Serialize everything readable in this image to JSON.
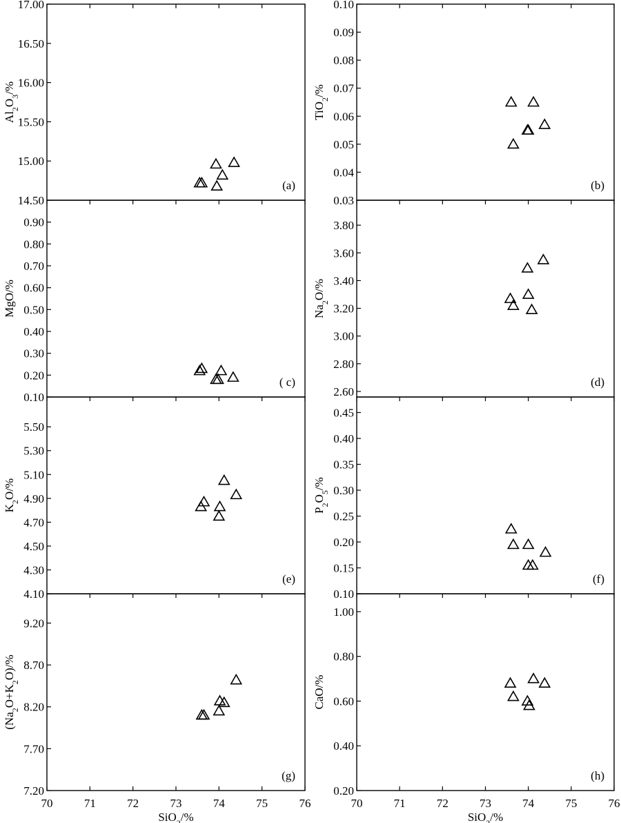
{
  "chart_data": [
    {
      "panel": "(a)",
      "type": "scatter",
      "xlabel": "SiO₂/%",
      "ylabel": "Al₂O₃/%",
      "xlim": [
        70,
        76
      ],
      "ylim": [
        14.5,
        17.0
      ],
      "xticks": [
        70,
        71,
        72,
        73,
        74,
        75,
        76
      ],
      "yticks": [
        "14.50",
        "15.00",
        "15.50",
        "16.00",
        "16.50",
        "17.00"
      ],
      "points": [
        [
          73.55,
          14.72
        ],
        [
          73.6,
          14.72
        ],
        [
          73.93,
          14.96
        ],
        [
          73.95,
          14.68
        ],
        [
          74.08,
          14.82
        ],
        [
          74.35,
          14.98
        ]
      ]
    },
    {
      "panel": "(b)",
      "type": "scatter",
      "xlabel": "SiO₂/%",
      "ylabel": "TiO₂/%",
      "xlim": [
        70,
        76
      ],
      "ylim": [
        0.03,
        0.1
      ],
      "xticks": [
        70,
        71,
        72,
        73,
        74,
        75,
        76
      ],
      "yticks": [
        "0.03",
        "0.04",
        "0.05",
        "0.06",
        "0.07",
        "0.08",
        "0.09",
        "0.10"
      ],
      "points": [
        [
          73.6,
          0.065
        ],
        [
          73.65,
          0.05
        ],
        [
          73.98,
          0.055
        ],
        [
          74.0,
          0.055
        ],
        [
          74.12,
          0.065
        ],
        [
          74.38,
          0.057
        ]
      ]
    },
    {
      "panel": "( c)",
      "type": "scatter",
      "xlabel": "SiO₂/%",
      "ylabel": "MgO/%",
      "xlim": [
        70,
        76
      ],
      "ylim": [
        0.1,
        1.0
      ],
      "xticks": [
        70,
        71,
        72,
        73,
        74,
        75,
        76
      ],
      "yticks": [
        "0.10",
        "0.20",
        "0.30",
        "0.40",
        "0.50",
        "0.60",
        "0.70",
        "0.80",
        "0.90"
      ],
      "points": [
        [
          73.55,
          0.22
        ],
        [
          73.6,
          0.23
        ],
        [
          73.93,
          0.18
        ],
        [
          73.98,
          0.18
        ],
        [
          74.05,
          0.22
        ],
        [
          74.33,
          0.19
        ]
      ]
    },
    {
      "panel": "(d)",
      "type": "scatter",
      "xlabel": "SiO₂/%",
      "ylabel": "Na₂O/%",
      "xlim": [
        70,
        76
      ],
      "ylim": [
        2.56,
        3.98
      ],
      "xticks": [
        70,
        71,
        72,
        73,
        74,
        75,
        76
      ],
      "yticks": [
        "2.60",
        "2.80",
        "3.00",
        "3.20",
        "3.40",
        "3.60",
        "3.80"
      ],
      "points": [
        [
          73.58,
          3.27
        ],
        [
          73.65,
          3.22
        ],
        [
          73.98,
          3.49
        ],
        [
          74.0,
          3.3
        ],
        [
          74.08,
          3.19
        ],
        [
          74.35,
          3.55
        ]
      ]
    },
    {
      "panel": "(e)",
      "type": "scatter",
      "xlabel": "SiO₂/%",
      "ylabel": "K₂O/%",
      "xlim": [
        70,
        76
      ],
      "ylim": [
        4.1,
        5.75
      ],
      "xticks": [
        70,
        71,
        72,
        73,
        74,
        75,
        76
      ],
      "yticks": [
        "4.10",
        "4.30",
        "4.50",
        "4.70",
        "4.90",
        "5.10",
        "5.30",
        "5.50"
      ],
      "points": [
        [
          73.58,
          4.83
        ],
        [
          73.65,
          4.87
        ],
        [
          74.0,
          4.75
        ],
        [
          74.02,
          4.83
        ],
        [
          74.12,
          5.05
        ],
        [
          74.4,
          4.93
        ]
      ]
    },
    {
      "panel": "(f)",
      "type": "scatter",
      "xlabel": "SiO₂/%",
      "ylabel": "P₂O₅/%",
      "xlim": [
        70,
        76
      ],
      "ylim": [
        0.1,
        0.48
      ],
      "xticks": [
        70,
        71,
        72,
        73,
        74,
        75,
        76
      ],
      "yticks": [
        "0.10",
        "0.15",
        "0.20",
        "0.25",
        "0.30",
        "0.35",
        "0.40",
        "0.45"
      ],
      "points": [
        [
          73.6,
          0.225
        ],
        [
          73.65,
          0.195
        ],
        [
          74.0,
          0.195
        ],
        [
          74.0,
          0.155
        ],
        [
          74.1,
          0.155
        ],
        [
          74.4,
          0.18
        ]
      ]
    },
    {
      "panel": "(g)",
      "type": "scatter",
      "xlabel": "SiO₂/%",
      "ylabel": "(Na₂O+K₂O)/%",
      "xlim": [
        70,
        76
      ],
      "ylim": [
        7.2,
        9.55
      ],
      "xticks": [
        70,
        71,
        72,
        73,
        74,
        75,
        76
      ],
      "yticks": [
        "7.20",
        "7.70",
        "8.20",
        "8.70",
        "9.20"
      ],
      "points": [
        [
          73.6,
          8.1
        ],
        [
          73.65,
          8.1
        ],
        [
          74.0,
          8.15
        ],
        [
          74.02,
          8.27
        ],
        [
          74.12,
          8.25
        ],
        [
          74.4,
          8.52
        ]
      ]
    },
    {
      "panel": "(h)",
      "type": "scatter",
      "xlabel": "SiO₂/%",
      "ylabel": "CaO/%",
      "xlim": [
        70,
        76
      ],
      "ylim": [
        0.2,
        1.08
      ],
      "xticks": [
        70,
        71,
        72,
        73,
        74,
        75,
        76
      ],
      "yticks": [
        "0.20",
        "0.40",
        "0.60",
        "0.80",
        "1.00"
      ],
      "points": [
        [
          73.58,
          0.68
        ],
        [
          73.65,
          0.62
        ],
        [
          73.98,
          0.6
        ],
        [
          74.02,
          0.58
        ],
        [
          74.12,
          0.7
        ],
        [
          74.38,
          0.68
        ]
      ]
    }
  ]
}
